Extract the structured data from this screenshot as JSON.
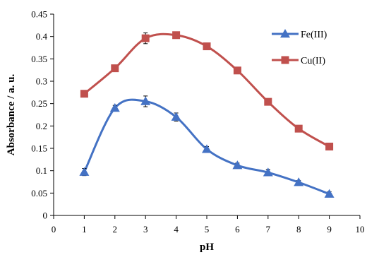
{
  "chart_data": {
    "type": "line",
    "title": "",
    "xlabel": "pH",
    "ylabel": "Absorbance / a. u.",
    "xlim": [
      0,
      10
    ],
    "ylim": [
      0,
      0.45
    ],
    "x_ticks": [
      "0",
      "1",
      "2",
      "3",
      "4",
      "5",
      "6",
      "7",
      "8",
      "9",
      "10"
    ],
    "y_ticks": [
      "0",
      "0.05",
      "0.1",
      "0.15",
      "0.2",
      "0.25",
      "0.3",
      "0.35",
      "0.4",
      "0.45"
    ],
    "grid": false,
    "legend_position": "top-right",
    "x": [
      1,
      2,
      3,
      4,
      5,
      6,
      7,
      8,
      9
    ],
    "series": [
      {
        "name": "Fe(III)",
        "marker": "triangle",
        "color": "#4472C4",
        "values": [
          0.097,
          0.24,
          0.255,
          0.22,
          0.148,
          0.112,
          0.096,
          0.074,
          0.048
        ],
        "errors": [
          0.008,
          0.006,
          0.012,
          0.009,
          0.006,
          0.005,
          0.007,
          0.004,
          0.005
        ]
      },
      {
        "name": "Cu(II)",
        "marker": "square",
        "color": "#C0504D",
        "values": [
          0.272,
          0.329,
          0.396,
          0.403,
          0.378,
          0.324,
          0.254,
          0.194,
          0.154
        ],
        "errors": [
          0.004,
          0.005,
          0.012,
          0.006,
          0.005,
          0.004,
          0.004,
          0.005,
          0.004
        ]
      }
    ]
  }
}
